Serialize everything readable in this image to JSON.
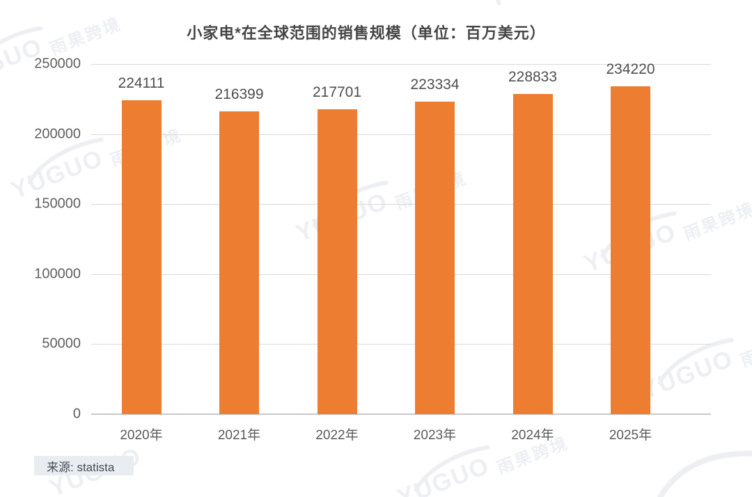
{
  "title": "小家电*在全球范围的销售规模（单位：百万美元）",
  "source": {
    "label": "来源: statista"
  },
  "watermark": {
    "brand": "YUGUO",
    "brand_cn": "雨果跨境"
  },
  "colors": {
    "bar": "#ED7D31",
    "gridline": "#D9D9D9",
    "axis_label": "#595959",
    "value_label": "#4D4D4D",
    "title_text": "#404040",
    "source_bg": "#E9ECF0",
    "watermark": "#EDEFF3"
  },
  "chart_data": {
    "type": "bar",
    "title": "小家电*在全球范围的销售规模（单位：百万美元）",
    "categories": [
      "2020年",
      "2021年",
      "2022年",
      "2023年",
      "2024年",
      "2025年"
    ],
    "values": [
      224111,
      216399,
      217701,
      223334,
      228833,
      234220
    ],
    "xlabel": "",
    "ylabel": "",
    "ylim": [
      0,
      250000
    ],
    "yticks": [
      0,
      50000,
      100000,
      150000,
      200000,
      250000
    ],
    "grid": true,
    "legend": false,
    "bar_color": "#ED7D31",
    "source": "来源: statista"
  }
}
